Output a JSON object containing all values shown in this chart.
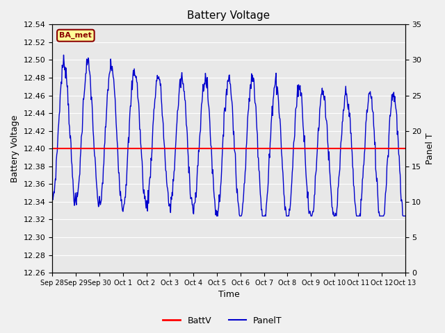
{
  "title": "Battery Voltage",
  "xlabel": "Time",
  "ylabel_left": "Battery Voltage",
  "ylabel_right": "Panel T",
  "annotation_text": "BA_met",
  "battv_value": 12.4,
  "battv_color": "#ff0000",
  "panelt_color": "#0000cc",
  "bg_color": "#e8e8e8",
  "fig_bg_color": "#f0f0f0",
  "legend_items": [
    "BattV",
    "PanelT"
  ],
  "title_fontsize": 11,
  "axis_label_fontsize": 9,
  "tick_fontsize": 8,
  "ylim_left": [
    12.26,
    12.54
  ],
  "ylim_right": [
    0,
    35
  ],
  "yticks_left": [
    12.26,
    12.28,
    12.3,
    12.32,
    12.34,
    12.36,
    12.38,
    12.4,
    12.42,
    12.44,
    12.46,
    12.48,
    12.5,
    12.52,
    12.54
  ],
  "yticks_right": [
    0,
    5,
    10,
    15,
    20,
    25,
    30,
    35
  ],
  "x_tick_labels": [
    "Sep 28",
    "Sep 29",
    "Sep 30",
    "Oct 1",
    "Oct 2",
    "Oct 3",
    "Oct 4",
    "Oct 5",
    "Oct 6",
    "Oct 7",
    "Oct 8",
    "Oct 9",
    "Oct 10",
    "Oct 11",
    "Oct 12",
    "Oct 13"
  ]
}
